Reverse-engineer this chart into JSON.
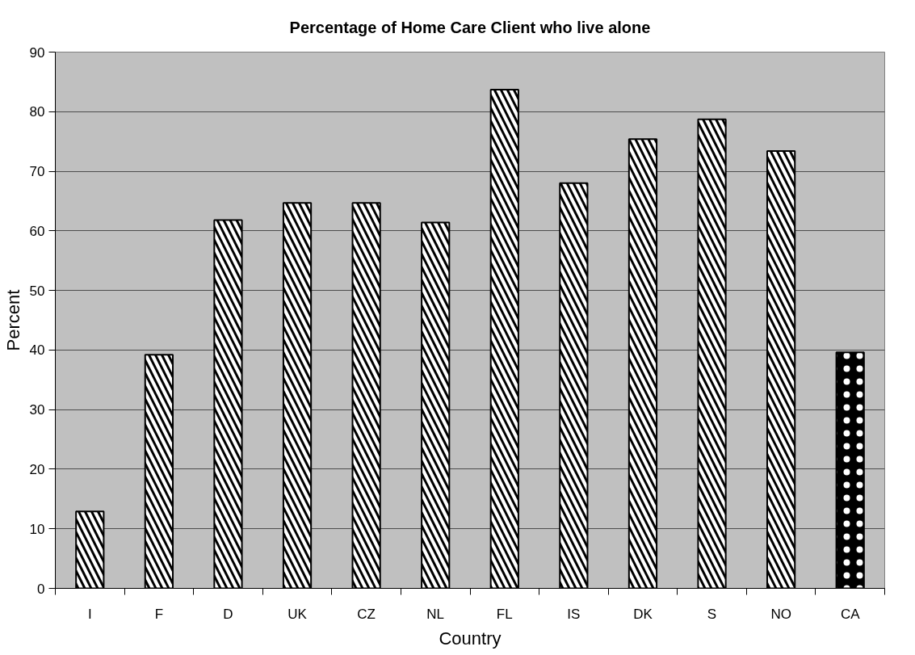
{
  "chart_data": {
    "type": "bar",
    "title": "Percentage of Home Care Client who live alone",
    "xlabel": "Country",
    "ylabel": "Percent",
    "categories": [
      "I",
      "F",
      "D",
      "UK",
      "CZ",
      "NL",
      "FL",
      "IS",
      "DK",
      "S",
      "NO",
      "CA"
    ],
    "values": [
      12.9,
      39.2,
      61.8,
      64.7,
      64.7,
      61.4,
      83.7,
      68.0,
      75.4,
      78.7,
      73.4,
      39.6
    ],
    "colors": [
      "#ffffff",
      "#ffffff",
      "#ffffff",
      "#ffffff",
      "#ffffff",
      "#ffffff",
      "#ffffff",
      "#ffffff",
      "#ffffff",
      "#ffffff",
      "#ffffff",
      "#000000"
    ],
    "ylim": [
      0,
      90
    ],
    "yticks": [
      0,
      10,
      20,
      30,
      40,
      50,
      60,
      70,
      80,
      90
    ],
    "grid": "y"
  }
}
